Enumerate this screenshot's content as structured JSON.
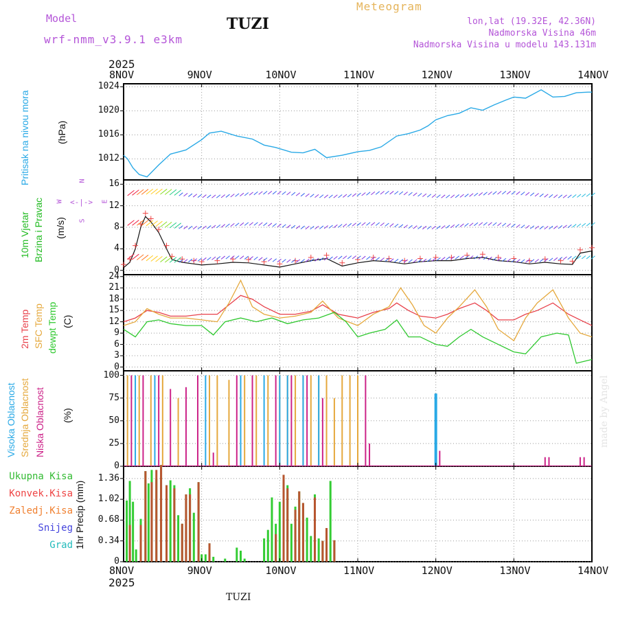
{
  "header": {
    "model_label": "Model",
    "model_name": "wrf-nmm_v3.9.1 e3km",
    "station": "TUZI",
    "title": "Meteogram",
    "lonlat": "lon,lat (19.32E, 42.36N)",
    "elevation": "Nadmorska Visina 46m",
    "model_elevation": "Nadmorska Visina u modelu 143.131m"
  },
  "footer": {
    "station": "TUZI",
    "credit": "made by Angel"
  },
  "colors": {
    "pressure": "#29a9e6",
    "temp2m": "#e8404a",
    "sfc": "#e5a83c",
    "dew": "#2ec82e",
    "mid_cloud": "#e5a83c",
    "high_cloud": "#29a9e6",
    "low_cloud": "#cc2288",
    "precip_total": "#33cc33",
    "precip_conv": "#b85530",
    "wind_obs": "#ee4444",
    "axis_title_pressure": "#29a9e6",
    "axis_title_wind": "#22bb22",
    "violet": "#b455d8"
  },
  "time_axis": {
    "year": "2025",
    "ticks": [
      "8NOV",
      "9NOV",
      "10NOV",
      "11NOV",
      "12NOV",
      "13NOV",
      "14NOV"
    ]
  },
  "chart_data": [
    {
      "id": "pressure",
      "type": "line",
      "title": "Pritisak na nivou mora",
      "ylabel": "(hPa)",
      "ylim": [
        1008.5,
        1024.5
      ],
      "yticks": [
        "1012",
        "1016",
        "1020",
        "1024"
      ],
      "series": [
        {
          "name": "Pritisak",
          "x": [
            0,
            0.05,
            0.12,
            0.2,
            0.3,
            0.45,
            0.6,
            0.8,
            1.0,
            1.1,
            1.25,
            1.45,
            1.65,
            1.8,
            1.95,
            2.15,
            2.3,
            2.45,
            2.6,
            2.8,
            3.0,
            3.15,
            3.3,
            3.5,
            3.65,
            3.8,
            3.9,
            4.0,
            4.15,
            4.3,
            4.45,
            4.6,
            4.75,
            4.9,
            5.0,
            5.15,
            5.35,
            5.5,
            5.65,
            5.8,
            5.95,
            6.0
          ],
          "values": [
            1012.6,
            1012,
            1010.5,
            1009.4,
            1009,
            1011,
            1012.8,
            1013.5,
            1015.2,
            1016.3,
            1016.6,
            1015.8,
            1015.3,
            1014.3,
            1013.9,
            1013.1,
            1013,
            1013.6,
            1012.2,
            1012.6,
            1013.2,
            1013.4,
            1014,
            1015.8,
            1016.2,
            1016.8,
            1017.5,
            1018.5,
            1019.2,
            1019.6,
            1020.5,
            1020.1,
            1021,
            1021.8,
            1022.3,
            1022.1,
            1023.5,
            1022.3,
            1022.4,
            1023,
            1023.1,
            1023.1
          ]
        }
      ]
    },
    {
      "id": "wind",
      "type": "line",
      "title": "10m Vjetar",
      "title2": "Brzina i Pravac",
      "ylabel": "(m/s)",
      "ylim": [
        -0.8,
        16.8
      ],
      "yticks": [
        "0",
        "4",
        "8",
        "12",
        "16"
      ],
      "compass": [
        "N",
        "W",
        "E",
        "S"
      ],
      "series": [
        {
          "name": "Brzina",
          "x": [
            0,
            0.08,
            0.15,
            0.22,
            0.28,
            0.35,
            0.45,
            0.55,
            0.62,
            0.75,
            0.9,
            1.0,
            1.2,
            1.4,
            1.6,
            1.8,
            2.0,
            2.2,
            2.4,
            2.6,
            2.8,
            3.0,
            3.2,
            3.4,
            3.6,
            3.8,
            4.0,
            4.2,
            4.4,
            4.6,
            4.8,
            5.0,
            5.2,
            5.4,
            5.6,
            5.75,
            5.85,
            6.0
          ],
          "values": [
            0.5,
            1.5,
            4,
            8,
            10,
            9,
            7,
            4,
            2,
            1.5,
            1.2,
            1,
            1.2,
            1.5,
            1.4,
            1,
            0.6,
            1.2,
            1.8,
            2.2,
            0.8,
            1.4,
            1.8,
            1.6,
            1.2,
            1.6,
            1.8,
            1.8,
            2.2,
            2.4,
            1.8,
            1.6,
            1.2,
            1.5,
            1.2,
            1.1,
            3.2,
            3.6
          ]
        }
      ]
    },
    {
      "id": "temperature",
      "type": "line",
      "title": "2m Temp",
      "title2": "SFC Temp",
      "title3": "dewpt Temp",
      "ylabel": "(C)",
      "ylim": [
        -1,
        24.5
      ],
      "yticks": [
        "0",
        "3",
        "6",
        "9",
        "12",
        "15",
        "18",
        "21",
        "24"
      ],
      "series": [
        {
          "name": "2m Temp",
          "x": [
            0,
            0.15,
            0.3,
            0.45,
            0.6,
            0.8,
            1.0,
            1.2,
            1.35,
            1.5,
            1.65,
            1.8,
            2.0,
            2.2,
            2.4,
            2.55,
            2.75,
            3.0,
            3.2,
            3.4,
            3.5,
            3.65,
            3.8,
            4.0,
            4.15,
            4.3,
            4.5,
            4.65,
            4.8,
            5.0,
            5.15,
            5.3,
            5.5,
            5.7,
            5.85,
            6.0
          ],
          "values": [
            12,
            13,
            15,
            14.5,
            13.5,
            13.5,
            14,
            14,
            16.5,
            19,
            18,
            16,
            14,
            14,
            14.8,
            16.5,
            14,
            13,
            14.5,
            15.5,
            17,
            15,
            13.5,
            13,
            14,
            15.5,
            17,
            15,
            12.5,
            12.5,
            14,
            15,
            17,
            14,
            12.5,
            11
          ]
        },
        {
          "name": "SFC Temp",
          "x": [
            0,
            0.15,
            0.3,
            0.45,
            0.6,
            0.8,
            1.0,
            1.2,
            1.35,
            1.5,
            1.65,
            1.8,
            2.0,
            2.2,
            2.4,
            2.55,
            2.75,
            3.0,
            3.2,
            3.4,
            3.55,
            3.7,
            3.85,
            4.0,
            4.15,
            4.3,
            4.5,
            4.65,
            4.8,
            5.0,
            5.15,
            5.3,
            5.5,
            5.7,
            5.85,
            6.0
          ],
          "values": [
            11,
            12,
            15.5,
            14,
            13,
            13,
            12.5,
            12,
            17,
            23,
            16,
            14,
            13,
            13.5,
            14.5,
            17.5,
            13,
            11,
            14,
            16,
            21,
            16.5,
            11,
            9,
            13,
            16,
            20.5,
            16,
            10,
            7,
            13,
            17,
            20.5,
            13,
            9,
            8
          ]
        },
        {
          "name": "dewpt Temp",
          "x": [
            0,
            0.15,
            0.3,
            0.45,
            0.6,
            0.8,
            1.0,
            1.15,
            1.3,
            1.5,
            1.7,
            1.9,
            2.1,
            2.3,
            2.5,
            2.7,
            2.85,
            3.0,
            3.15,
            3.35,
            3.5,
            3.65,
            3.8,
            4.0,
            4.15,
            4.3,
            4.45,
            4.6,
            4.8,
            5.0,
            5.15,
            5.35,
            5.55,
            5.7,
            5.8,
            5.9,
            6.0
          ],
          "values": [
            10,
            8,
            12,
            12.5,
            11.5,
            11,
            11,
            8.5,
            12,
            13,
            12,
            13,
            11.5,
            12.5,
            13,
            14.5,
            12,
            8,
            9,
            10,
            12.5,
            8,
            8,
            6,
            5.5,
            8,
            10,
            8,
            6,
            4,
            3.5,
            8,
            9,
            8.5,
            1,
            1.5,
            2
          ]
        }
      ]
    },
    {
      "id": "clouds",
      "type": "bar",
      "title": "Visoka Oblacnost",
      "title2": "Srednja Oblacnost",
      "title3": "Niska Oblacnost",
      "ylabel": "(%)",
      "ylim": [
        0,
        105
      ],
      "yticks": [
        "0",
        "25",
        "50",
        "75",
        "100"
      ],
      "series": [
        {
          "name": "Srednja Oblacnost",
          "x": [
            0.05,
            0.2,
            0.35,
            0.5,
            0.7,
            1.1,
            1.2,
            1.35,
            1.55,
            1.7,
            1.85,
            2.0,
            2.1,
            2.2,
            2.3,
            2.4,
            2.5,
            2.6,
            2.7,
            2.8,
            2.9,
            3.0
          ],
          "values": [
            100,
            100,
            100,
            100,
            75,
            100,
            100,
            95,
            100,
            100,
            100,
            100,
            100,
            100,
            100,
            100,
            100,
            100,
            75,
            100,
            100,
            100
          ]
        },
        {
          "name": "Niska Oblacnost",
          "x": [
            0.1,
            0.25,
            0.45,
            0.6,
            0.8,
            0.95,
            1.15,
            1.45,
            1.65,
            1.95,
            2.15,
            2.35,
            2.55,
            3.1,
            3.15,
            4.05,
            5.4,
            5.45,
            5.85,
            5.9
          ],
          "values": [
            100,
            100,
            100,
            85,
            87,
            100,
            15,
            100,
            100,
            100,
            100,
            100,
            75,
            100,
            25,
            17,
            10,
            10,
            10,
            10
          ]
        },
        {
          "name": "Visoka Oblacnost",
          "x": [
            0.15,
            0.4,
            1.05,
            1.5,
            1.8,
            2.0,
            2.1,
            2.3,
            2.5,
            4.0
          ],
          "values": [
            100,
            100,
            100,
            100,
            100,
            100,
            100,
            100,
            100,
            80
          ]
        }
      ]
    },
    {
      "id": "precip",
      "type": "bar",
      "title": "Ukupna Kisa",
      "title2": "Konvek.Kisa",
      "title3": "Zaledj.Kisa",
      "title4": "Snijeg",
      "title5": "Grad",
      "ylabel": "1hr Precip (mm)",
      "ylim": [
        0,
        1.56
      ],
      "yticks": [
        "0",
        "0.34",
        "0.68",
        "1.02",
        "1.36"
      ],
      "series": [
        {
          "name": "Ukupna Kisa",
          "x": [
            0.04,
            0.08,
            0.12,
            0.16,
            0.22,
            0.28,
            0.32,
            0.36,
            0.42,
            0.48,
            0.55,
            0.6,
            0.65,
            0.7,
            0.75,
            0.8,
            0.85,
            0.9,
            0.96,
            1.0,
            1.05,
            1.1,
            1.15,
            1.3,
            1.45,
            1.5,
            1.55,
            1.8,
            1.85,
            1.9,
            1.95,
            2.0,
            2.05,
            2.1,
            2.15,
            2.2,
            2.25,
            2.3,
            2.35,
            2.4,
            2.45,
            2.5,
            2.55,
            2.6,
            2.65,
            2.7
          ],
          "values": [
            1,
            1.32,
            0.98,
            0.2,
            0.7,
            1.48,
            1.28,
            1.5,
            1.36,
            1.58,
            1.25,
            1.33,
            1.25,
            0.76,
            0.62,
            1.1,
            1.2,
            0.8,
            1.3,
            0.12,
            0.12,
            0.3,
            0.08,
            0.05,
            0.23,
            0.18,
            0.05,
            0.38,
            0.52,
            1.05,
            0.62,
            0.98,
            1.42,
            1.25,
            0.62,
            0.9,
            1.15,
            0.96,
            0.72,
            0.42,
            1.1,
            0.38,
            0.34,
            0.55,
            1.32,
            0.35
          ]
        },
        {
          "name": "Konvek.Kisa",
          "x": [
            0.08,
            0.22,
            0.28,
            0.36,
            0.42,
            0.48,
            0.55,
            0.65,
            0.75,
            0.8,
            0.85,
            0.96,
            1.1,
            1.95,
            2.05,
            2.1,
            2.2,
            2.25,
            2.3,
            2.45,
            2.55,
            2.6,
            2.7
          ],
          "values": [
            0.6,
            0.6,
            1.48,
            1.3,
            1.5,
            1.58,
            1.25,
            1.2,
            0.62,
            1.1,
            1.1,
            1.3,
            0.3,
            0.45,
            1.42,
            1.2,
            0.85,
            1.15,
            0.96,
            1.05,
            0.34,
            0.55,
            0.35
          ]
        }
      ]
    }
  ]
}
